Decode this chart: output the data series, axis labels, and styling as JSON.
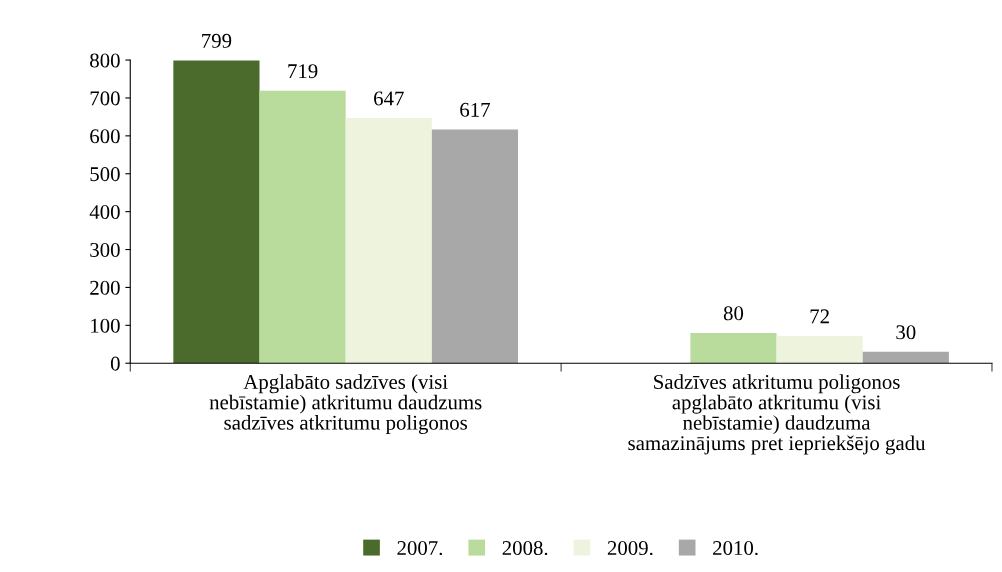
{
  "chart_data": {
    "type": "bar",
    "categories": [
      "Apglabāto sadzīves (visi\nnebīstamie) atkritumu daudzums\nsadzīves atkritumu poligonos",
      "Sadzīves atkritumu poligonos\napglabāto atkritumu (visi\nnebīstamie) daudzuma\nsamazinājums pret iepriekšējo gadu"
    ],
    "series": [
      {
        "name": "2007.",
        "color": "#4b6b2c",
        "values": [
          799,
          null
        ]
      },
      {
        "name": "2008.",
        "color": "#b9dc9c",
        "values": [
          719,
          80
        ]
      },
      {
        "name": "2009.",
        "color": "#eef3dd",
        "values": [
          647,
          72
        ]
      },
      {
        "name": "2010.",
        "color": "#a8a8a8",
        "values": [
          617,
          30
        ]
      }
    ],
    "ylim": [
      0,
      800
    ],
    "yticks": [
      0,
      100,
      200,
      300,
      400,
      500,
      600,
      700,
      800
    ],
    "data_labels": true,
    "grid": false,
    "legend": "bottom"
  }
}
